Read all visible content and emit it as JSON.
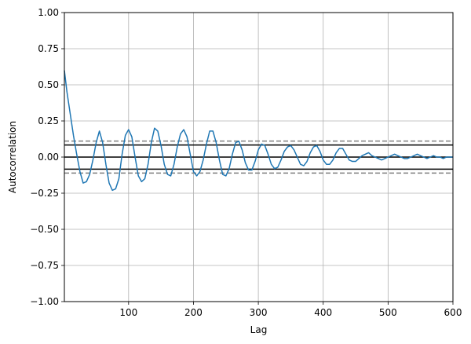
{
  "chart_data": {
    "type": "line",
    "title": "",
    "xlabel": "Lag",
    "ylabel": "Autocorrelation",
    "xlim": [
      1,
      600
    ],
    "ylim": [
      -1.0,
      1.0
    ],
    "grid": true,
    "x_ticks": [
      100,
      200,
      300,
      400,
      500,
      600
    ],
    "x_tick_labels": [
      "100",
      "200",
      "300",
      "400",
      "500",
      "600"
    ],
    "y_ticks": [
      -1.0,
      -0.75,
      -0.5,
      -0.25,
      0.0,
      0.25,
      0.5,
      0.75,
      1.0
    ],
    "y_tick_labels": [
      "−1.00",
      "−0.75",
      "−0.50",
      "−0.25",
      "0.00",
      "0.25",
      "0.50",
      "0.75",
      "1.00"
    ],
    "reference_lines": [
      {
        "y": 0.0,
        "style": "solid",
        "color": "#000000"
      },
      {
        "y": 0.0836,
        "style": "solid",
        "color": "#000000"
      },
      {
        "y": -0.0836,
        "style": "solid",
        "color": "#000000"
      },
      {
        "y": 0.1109,
        "style": "dashed",
        "color": "#808080"
      },
      {
        "y": -0.1109,
        "style": "dashed",
        "color": "#808080"
      }
    ],
    "series": [
      {
        "color": "#1f77b4",
        "x": [
          1,
          5,
          10,
          15,
          20,
          25,
          30,
          35,
          40,
          45,
          50,
          55,
          60,
          65,
          70,
          75,
          80,
          85,
          90,
          95,
          100,
          105,
          110,
          115,
          120,
          125,
          130,
          135,
          140,
          145,
          150,
          155,
          160,
          165,
          170,
          175,
          180,
          185,
          190,
          195,
          200,
          205,
          210,
          215,
          220,
          225,
          230,
          235,
          240,
          245,
          250,
          255,
          260,
          265,
          270,
          275,
          280,
          285,
          290,
          295,
          300,
          305,
          310,
          315,
          320,
          325,
          330,
          335,
          340,
          345,
          350,
          355,
          360,
          365,
          370,
          375,
          380,
          385,
          390,
          395,
          400,
          405,
          410,
          415,
          420,
          425,
          430,
          435,
          440,
          445,
          450,
          455,
          460,
          465,
          470,
          475,
          480,
          485,
          490,
          495,
          500,
          505,
          510,
          515,
          520,
          525,
          530,
          535,
          540,
          545,
          550,
          555,
          560,
          565,
          570,
          575,
          580,
          585,
          590,
          595,
          600
        ],
        "y": [
          0.6,
          0.45,
          0.3,
          0.15,
          0.02,
          -0.1,
          -0.18,
          -0.17,
          -0.12,
          -0.02,
          0.1,
          0.18,
          0.1,
          -0.05,
          -0.18,
          -0.23,
          -0.22,
          -0.15,
          0.02,
          0.15,
          0.19,
          0.14,
          0.0,
          -0.13,
          -0.17,
          -0.15,
          -0.05,
          0.1,
          0.2,
          0.18,
          0.08,
          -0.05,
          -0.12,
          -0.13,
          -0.05,
          0.07,
          0.16,
          0.19,
          0.14,
          0.02,
          -0.1,
          -0.13,
          -0.1,
          -0.02,
          0.09,
          0.18,
          0.18,
          0.1,
          -0.02,
          -0.12,
          -0.13,
          -0.08,
          0.02,
          0.1,
          0.11,
          0.05,
          -0.04,
          -0.09,
          -0.09,
          -0.03,
          0.05,
          0.09,
          0.08,
          0.02,
          -0.05,
          -0.08,
          -0.07,
          -0.02,
          0.04,
          0.07,
          0.08,
          0.05,
          0.0,
          -0.05,
          -0.06,
          -0.03,
          0.03,
          0.07,
          0.08,
          0.04,
          -0.02,
          -0.05,
          -0.05,
          -0.02,
          0.03,
          0.06,
          0.06,
          0.02,
          -0.02,
          -0.03,
          -0.03,
          -0.01,
          0.01,
          0.02,
          0.03,
          0.01,
          0.0,
          -0.01,
          -0.02,
          -0.01,
          0.0,
          0.01,
          0.02,
          0.01,
          0.0,
          -0.01,
          -0.01,
          0.0,
          0.01,
          0.02,
          0.01,
          0.0,
          -0.01,
          0.0,
          0.01,
          0.0,
          0.0,
          -0.01,
          0.0,
          0.0,
          0.0
        ]
      }
    ]
  }
}
